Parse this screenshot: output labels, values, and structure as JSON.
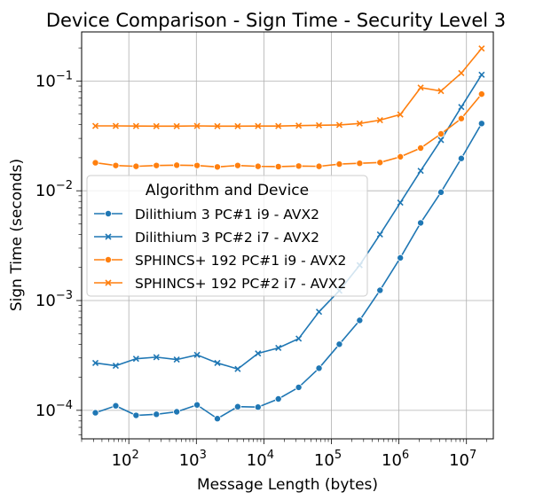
{
  "chart_data": {
    "type": "line",
    "title": "Device Comparison - Sign Time - Security Level 3",
    "xlabel": "Message Length (bytes)",
    "ylabel": "Sign Time (seconds)",
    "xscale": "log",
    "yscale": "log",
    "xlim": [
      20,
      25000000
    ],
    "ylim": [
      5.5e-05,
      0.28
    ],
    "grid": true,
    "legend": {
      "title": "Algorithm and Device",
      "placement": "center-left"
    },
    "x_ticks": [
      {
        "base": "10",
        "exp": "2",
        "value": 100
      },
      {
        "base": "10",
        "exp": "3",
        "value": 1000
      },
      {
        "base": "10",
        "exp": "4",
        "value": 10000
      },
      {
        "base": "10",
        "exp": "5",
        "value": 100000
      },
      {
        "base": "10",
        "exp": "6",
        "value": 1000000
      },
      {
        "base": "10",
        "exp": "7",
        "value": 10000000
      }
    ],
    "y_ticks": [
      {
        "base": "10",
        "exp": "−4",
        "value": 0.0001
      },
      {
        "base": "10",
        "exp": "−3",
        "value": 0.001
      },
      {
        "base": "10",
        "exp": "−2",
        "value": 0.01
      },
      {
        "base": "10",
        "exp": "−1",
        "value": 0.1
      }
    ],
    "x": [
      32,
      64,
      128,
      256,
      512,
      1024,
      2048,
      4096,
      8192,
      16384,
      32768,
      65536,
      131072,
      262144,
      524288,
      1048576,
      2097152,
      4194304,
      8388608,
      16777216
    ],
    "series": [
      {
        "name": "Dilithium 3 PC#1 i9 - AVX2",
        "color": "#1f77b4",
        "marker": "circle",
        "values": [
          9.5e-05,
          0.00011,
          9e-05,
          9.2e-05,
          9.7e-05,
          0.000112,
          8.4e-05,
          0.000108,
          0.000107,
          0.000127,
          0.000162,
          0.000242,
          0.0004,
          0.00066,
          0.00124,
          0.00245,
          0.0051,
          0.0097,
          0.0197,
          0.041
        ]
      },
      {
        "name": "Dilithium 3 PC#2 i7 - AVX2",
        "color": "#1f77b4",
        "marker": "x",
        "values": [
          0.00027,
          0.000255,
          0.000295,
          0.000305,
          0.00029,
          0.00032,
          0.00027,
          0.000238,
          0.00033,
          0.00037,
          0.00045,
          0.00079,
          0.00123,
          0.0021,
          0.004,
          0.0078,
          0.0152,
          0.029,
          0.058,
          0.114
        ]
      },
      {
        "name": "SPHINCS+ 192 PC#1 i9 - AVX2",
        "color": "#ff7f0e",
        "marker": "circle",
        "values": [
          0.018,
          0.017,
          0.0167,
          0.017,
          0.0171,
          0.017,
          0.0165,
          0.017,
          0.0167,
          0.0166,
          0.0168,
          0.0167,
          0.0175,
          0.0178,
          0.0181,
          0.0204,
          0.0245,
          0.033,
          0.0455,
          0.076
        ]
      },
      {
        "name": "SPHINCS+ 192 PC#2 i7 - AVX2",
        "color": "#ff7f0e",
        "marker": "x",
        "values": [
          0.039,
          0.039,
          0.0389,
          0.0388,
          0.0388,
          0.039,
          0.0388,
          0.0388,
          0.0389,
          0.0389,
          0.0392,
          0.0395,
          0.0398,
          0.041,
          0.044,
          0.0495,
          0.087,
          0.081,
          0.118,
          0.198
        ]
      }
    ]
  }
}
